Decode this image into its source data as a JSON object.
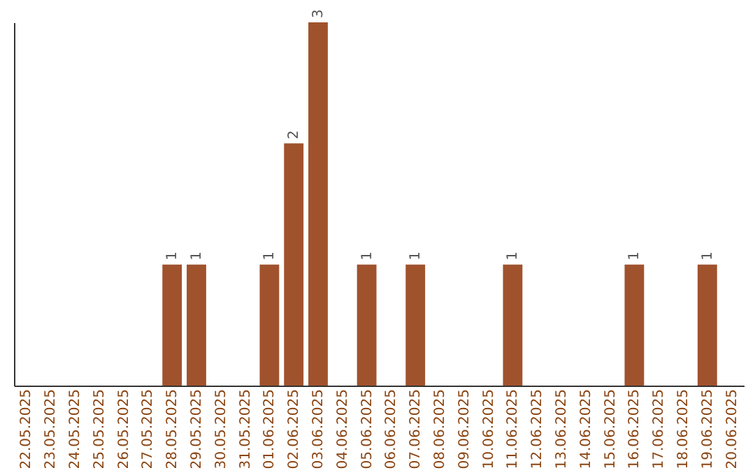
{
  "chart_data": {
    "type": "bar",
    "categories": [
      "22.05.2025",
      "23.05.2025",
      "24.05.2025",
      "25.05.2025",
      "26.05.2025",
      "27.05.2025",
      "28.05.2025",
      "29.05.2025",
      "30.05.2025",
      "31.05.2025",
      "01.06.2025",
      "02.06.2025",
      "03.06.2025",
      "04.06.2025",
      "05.06.2025",
      "06.06.2025",
      "07.06.2025",
      "08.06.2025",
      "09.06.2025",
      "10.06.2025",
      "11.06.2025",
      "12.06.2025",
      "13.06.2025",
      "14.06.2025",
      "15.06.2025",
      "16.06.2025",
      "17.06.2025",
      "18.06.2025",
      "19.06.2025",
      "20.06.2025"
    ],
    "values": [
      0,
      0,
      0,
      0,
      0,
      0,
      1,
      1,
      0,
      0,
      1,
      2,
      3,
      0,
      1,
      0,
      1,
      0,
      0,
      0,
      1,
      0,
      0,
      0,
      0,
      1,
      0,
      0,
      1,
      0
    ],
    "value_labels": [
      null,
      null,
      null,
      null,
      null,
      null,
      "1",
      "1",
      null,
      null,
      "1",
      "2",
      "3",
      null,
      "1",
      null,
      "1",
      null,
      null,
      null,
      "1",
      null,
      null,
      null,
      null,
      "1",
      null,
      null,
      "1",
      null
    ],
    "color": "#a0522d",
    "grid": false
  }
}
